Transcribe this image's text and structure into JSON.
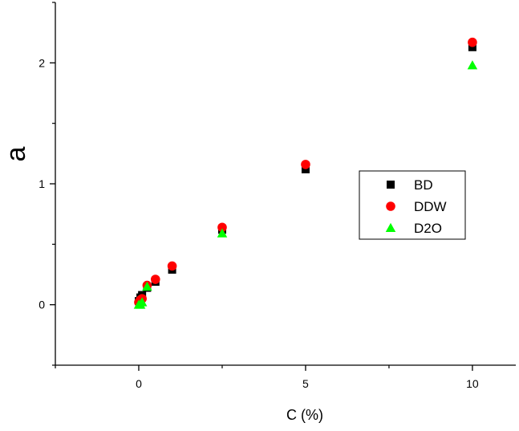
{
  "chart_data": {
    "type": "scatter",
    "xlabel": "C (%)",
    "ylabel": "a",
    "xlim": [
      -2.5,
      11.3
    ],
    "ylim": [
      -0.5,
      2.5
    ],
    "xticks": [
      0,
      5,
      10
    ],
    "xtick_labels": [
      "0",
      "5",
      "10"
    ],
    "yticks": [
      0,
      1,
      2
    ],
    "ytick_labels": [
      "0",
      "1",
      "2"
    ],
    "grid": false,
    "legend_position": "right",
    "series": [
      {
        "name": "BD",
        "marker": "square",
        "color": "#000000",
        "points": [
          {
            "x": 0.0,
            "y": 0.03
          },
          {
            "x": 0.05,
            "y": 0.06
          },
          {
            "x": 0.1,
            "y": 0.08
          },
          {
            "x": 0.25,
            "y": 0.14
          },
          {
            "x": 0.5,
            "y": 0.19
          },
          {
            "x": 1.0,
            "y": 0.29
          },
          {
            "x": 2.5,
            "y": 0.62
          },
          {
            "x": 5.0,
            "y": 1.12
          },
          {
            "x": 10.0,
            "y": 2.13
          }
        ]
      },
      {
        "name": "DDW",
        "marker": "circle",
        "color": "#ff0000",
        "points": [
          {
            "x": 0.0,
            "y": 0.02
          },
          {
            "x": 0.05,
            "y": 0.04
          },
          {
            "x": 0.1,
            "y": 0.05
          },
          {
            "x": 0.25,
            "y": 0.16
          },
          {
            "x": 0.5,
            "y": 0.21
          },
          {
            "x": 1.0,
            "y": 0.32
          },
          {
            "x": 2.5,
            "y": 0.64
          },
          {
            "x": 5.0,
            "y": 1.16
          },
          {
            "x": 10.0,
            "y": 2.17
          }
        ]
      },
      {
        "name": "D2O",
        "marker": "triangle",
        "color": "#00ff00",
        "points": [
          {
            "x": 0.0,
            "y": 0.0
          },
          {
            "x": 0.05,
            "y": 0.0
          },
          {
            "x": 0.1,
            "y": 0.02
          },
          {
            "x": 0.25,
            "y": 0.15
          },
          {
            "x": 2.5,
            "y": 0.59
          },
          {
            "x": 10.0,
            "y": 1.98
          }
        ]
      }
    ]
  }
}
